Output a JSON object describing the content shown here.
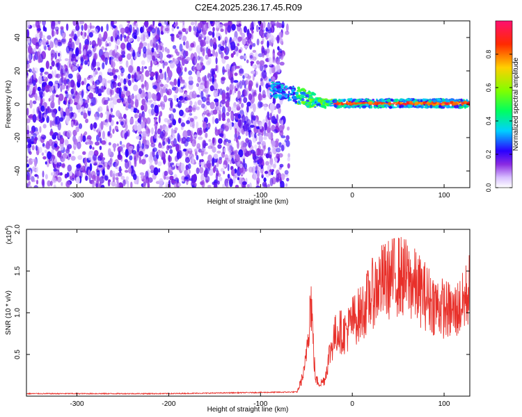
{
  "title": "C2E4.2025.236.17.45.R09",
  "chart_data": [
    {
      "type": "heatmap",
      "xlabel": "Height of straight line (km)",
      "ylabel": "Frequency (Hz)",
      "xlim": [
        -355,
        128
      ],
      "ylim": [
        -50,
        50
      ],
      "xticks": [
        "-300",
        "-200",
        "-100",
        "0",
        "100"
      ],
      "yticks": [
        "-40",
        "-20",
        "0",
        "20",
        "40"
      ],
      "colorbar": {
        "label": "Normalized spectral amplitude",
        "ticks": [
          "0.0",
          "0.2",
          "0.4",
          "0.6",
          "0.8"
        ],
        "range": [
          0,
          1
        ]
      },
      "regions": [
        {
          "description": "broadband noise",
          "x_range": [
            -355,
            -75
          ],
          "freq_range": [
            -50,
            50
          ],
          "amplitude": 0.15
        },
        {
          "description": "signal line",
          "x_range": [
            -90,
            128
          ],
          "freq_start": 10,
          "freq_end": 0.5,
          "amplitude": 0.9
        }
      ]
    },
    {
      "type": "line",
      "xlabel": "Height of straight line (km)",
      "ylabel": "SNR (10 * v/v)",
      "yscale_label": "(x10",
      "yscale_exp": "4",
      "xlim": [
        -355,
        128
      ],
      "ylim": [
        0,
        2.0
      ],
      "xticks": [
        "-300",
        "-200",
        "-100",
        "0",
        "100"
      ],
      "yticks": [
        "0.5",
        "1.0",
        "1.5",
        "2.0"
      ],
      "color": "#e8302a",
      "series": [
        {
          "x": [
            -355,
            -200,
            -60,
            -52,
            -48,
            -45,
            -42,
            -40,
            -35,
            -30,
            -25,
            -20,
            -15,
            -10,
            -5,
            0,
            10,
            20,
            30,
            40,
            50,
            60,
            70,
            80,
            90,
            100,
            110,
            120,
            128
          ],
          "y": [
            0.03,
            0.03,
            0.05,
            0.3,
            0.8,
            1.2,
            0.5,
            0.2,
            0.15,
            0.2,
            0.5,
            0.7,
            0.8,
            0.75,
            0.8,
            0.9,
            1.0,
            1.2,
            1.35,
            1.4,
            1.45,
            1.4,
            1.3,
            1.2,
            1.1,
            1.05,
            1.0,
            1.1,
            1.3
          ]
        }
      ]
    }
  ]
}
